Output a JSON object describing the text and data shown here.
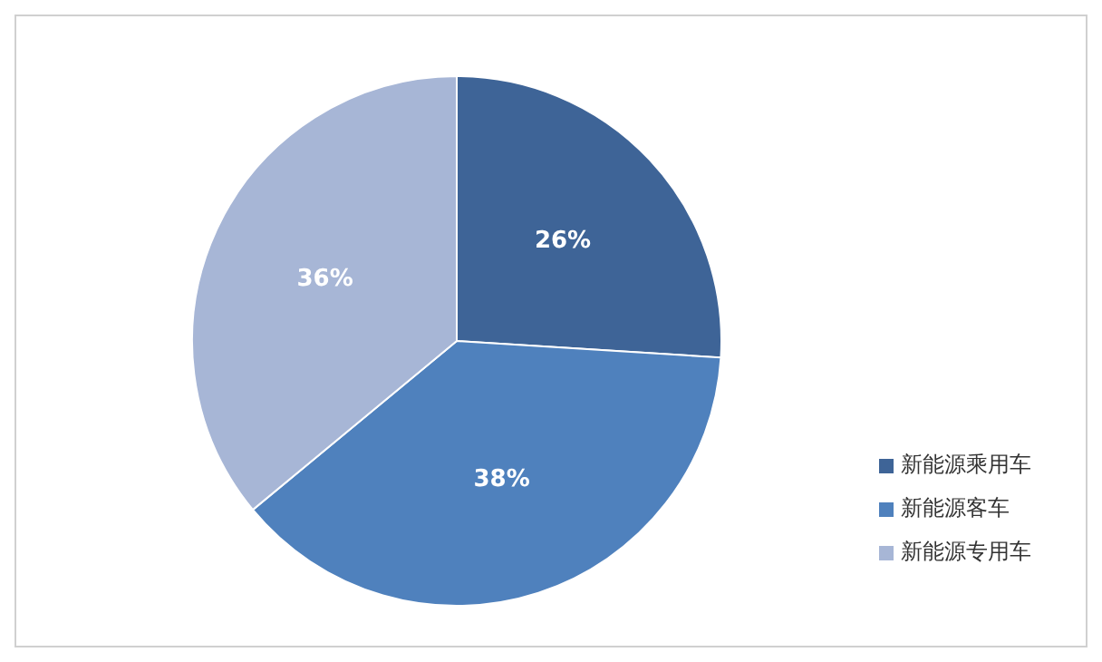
{
  "chart_data": {
    "type": "pie",
    "categories": [
      "新能源乘用车",
      "新能源客车",
      "新能源专用车"
    ],
    "values": [
      26,
      38,
      36
    ],
    "colors": [
      "#3e6497",
      "#4f81bd",
      "#a7b6d6"
    ],
    "value_labels": [
      "26%",
      "38%",
      "36%"
    ],
    "legend": "bottom right"
  }
}
